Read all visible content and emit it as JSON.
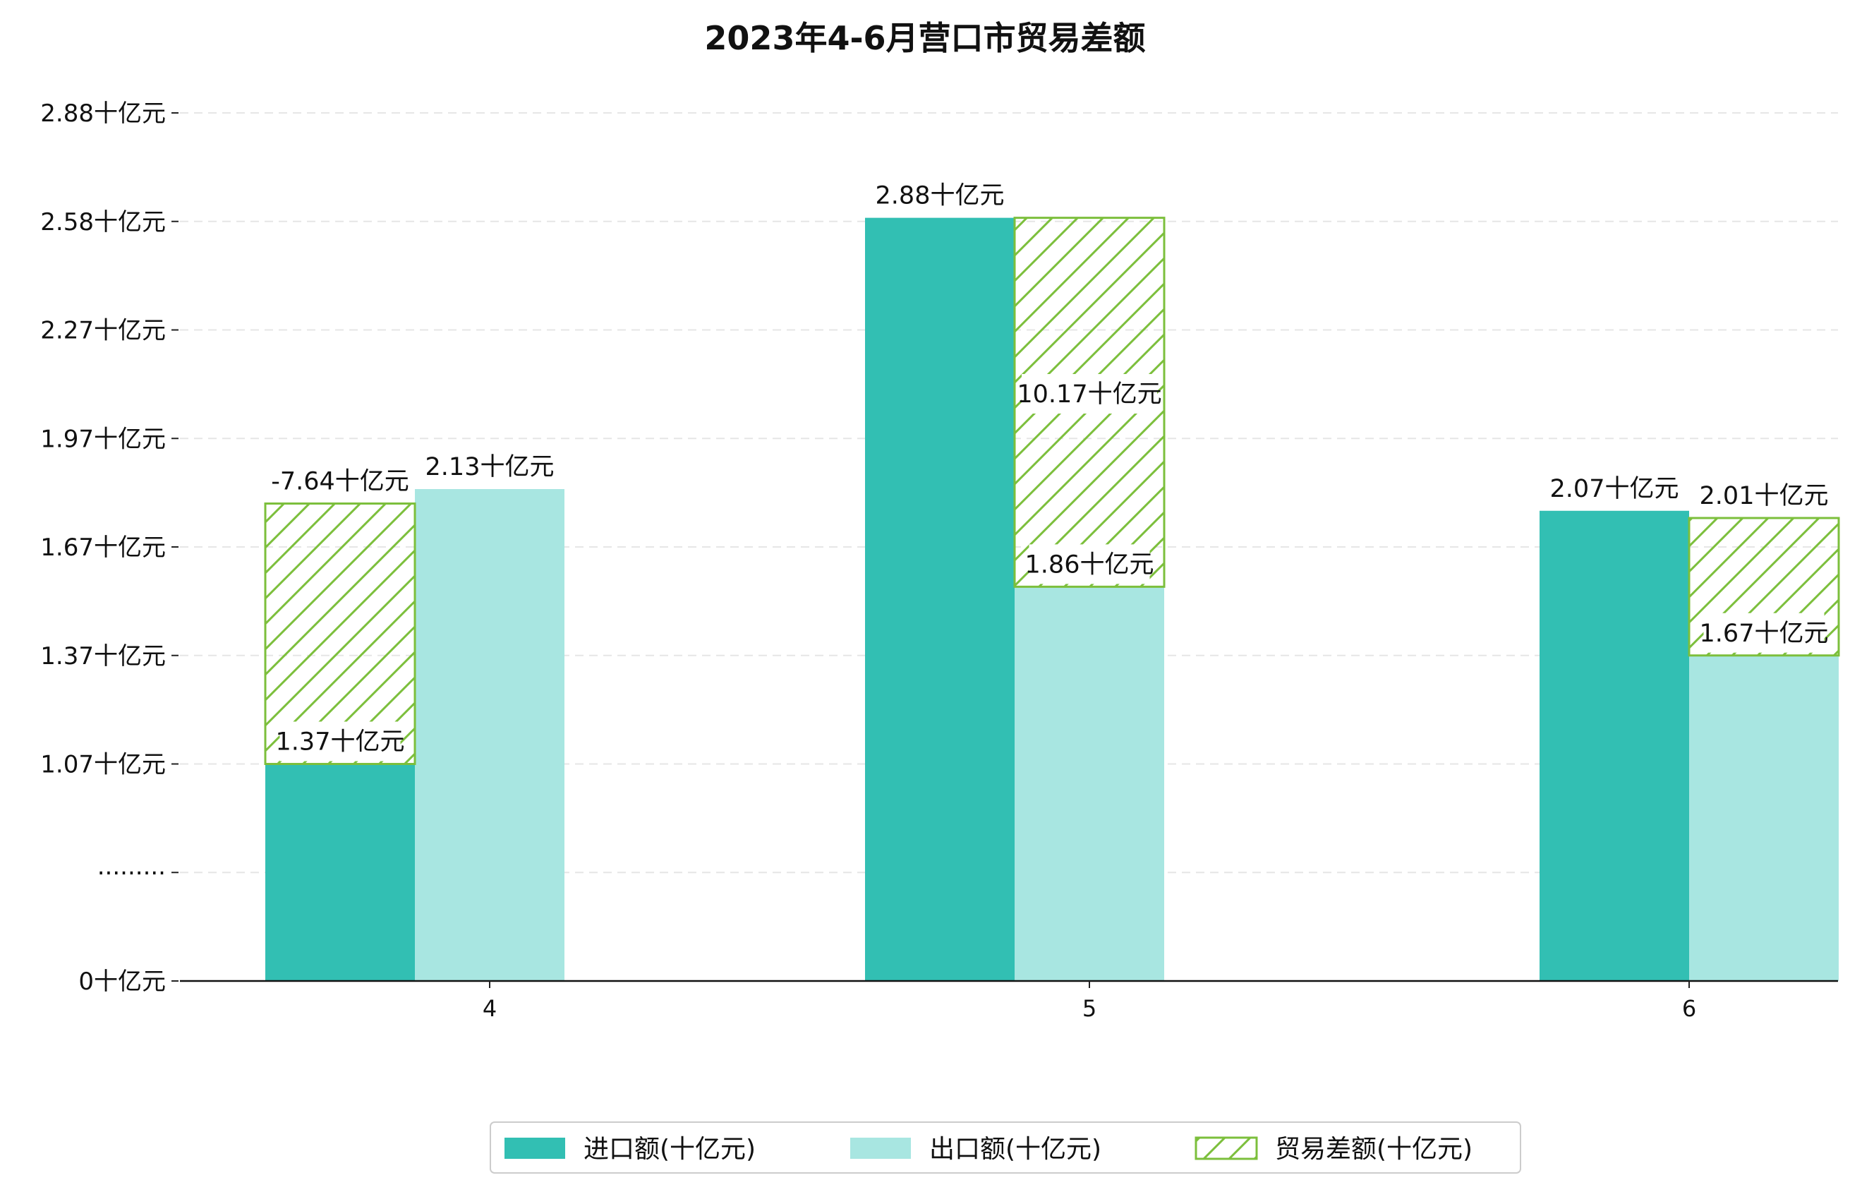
{
  "chart_data": {
    "type": "bar",
    "title": "2023年4-6月营口市贸易差额",
    "categories": [
      "4",
      "5",
      "6"
    ],
    "y_tick_labels": [
      "0十亿元",
      "·········",
      "1.07十亿元",
      "1.37十亿元",
      "1.67十亿元",
      "1.97十亿元",
      "2.27十亿元",
      "2.58十亿元",
      "2.88十亿元"
    ],
    "y_tick_values": [
      0,
      0.3,
      0.6,
      0.9,
      1.2,
      1.5,
      1.8,
      2.1,
      2.4
    ],
    "axis_break": {
      "display_offset": 0.77,
      "break_tick_label": "·········"
    },
    "grid": "horizontal-dashed",
    "legend_position": "bottom-center",
    "series": [
      {
        "name": "进口额(十亿元)",
        "color": "#32bfb3",
        "values": [
          1.37,
          2.88,
          2.07
        ],
        "labels": [
          "1.37十亿元",
          "2.88十亿元",
          "2.07十亿元"
        ]
      },
      {
        "name": "出口额(十亿元)",
        "color": "#a8e6e1",
        "values": [
          2.13,
          1.86,
          1.67
        ],
        "labels": [
          "2.13十亿元",
          "1.86十亿元",
          "1.67十亿元"
        ]
      },
      {
        "name": "贸易差额(十亿元)",
        "color": "#7cbf3c",
        "pattern": "hatch",
        "values": [
          -7.64,
          10.17,
          2.01
        ],
        "labels": [
          "-7.64十亿元",
          "10.17十亿元",
          "2.01十亿元"
        ],
        "display_tops": [
          2.09,
          2.88,
          2.05
        ]
      }
    ]
  }
}
